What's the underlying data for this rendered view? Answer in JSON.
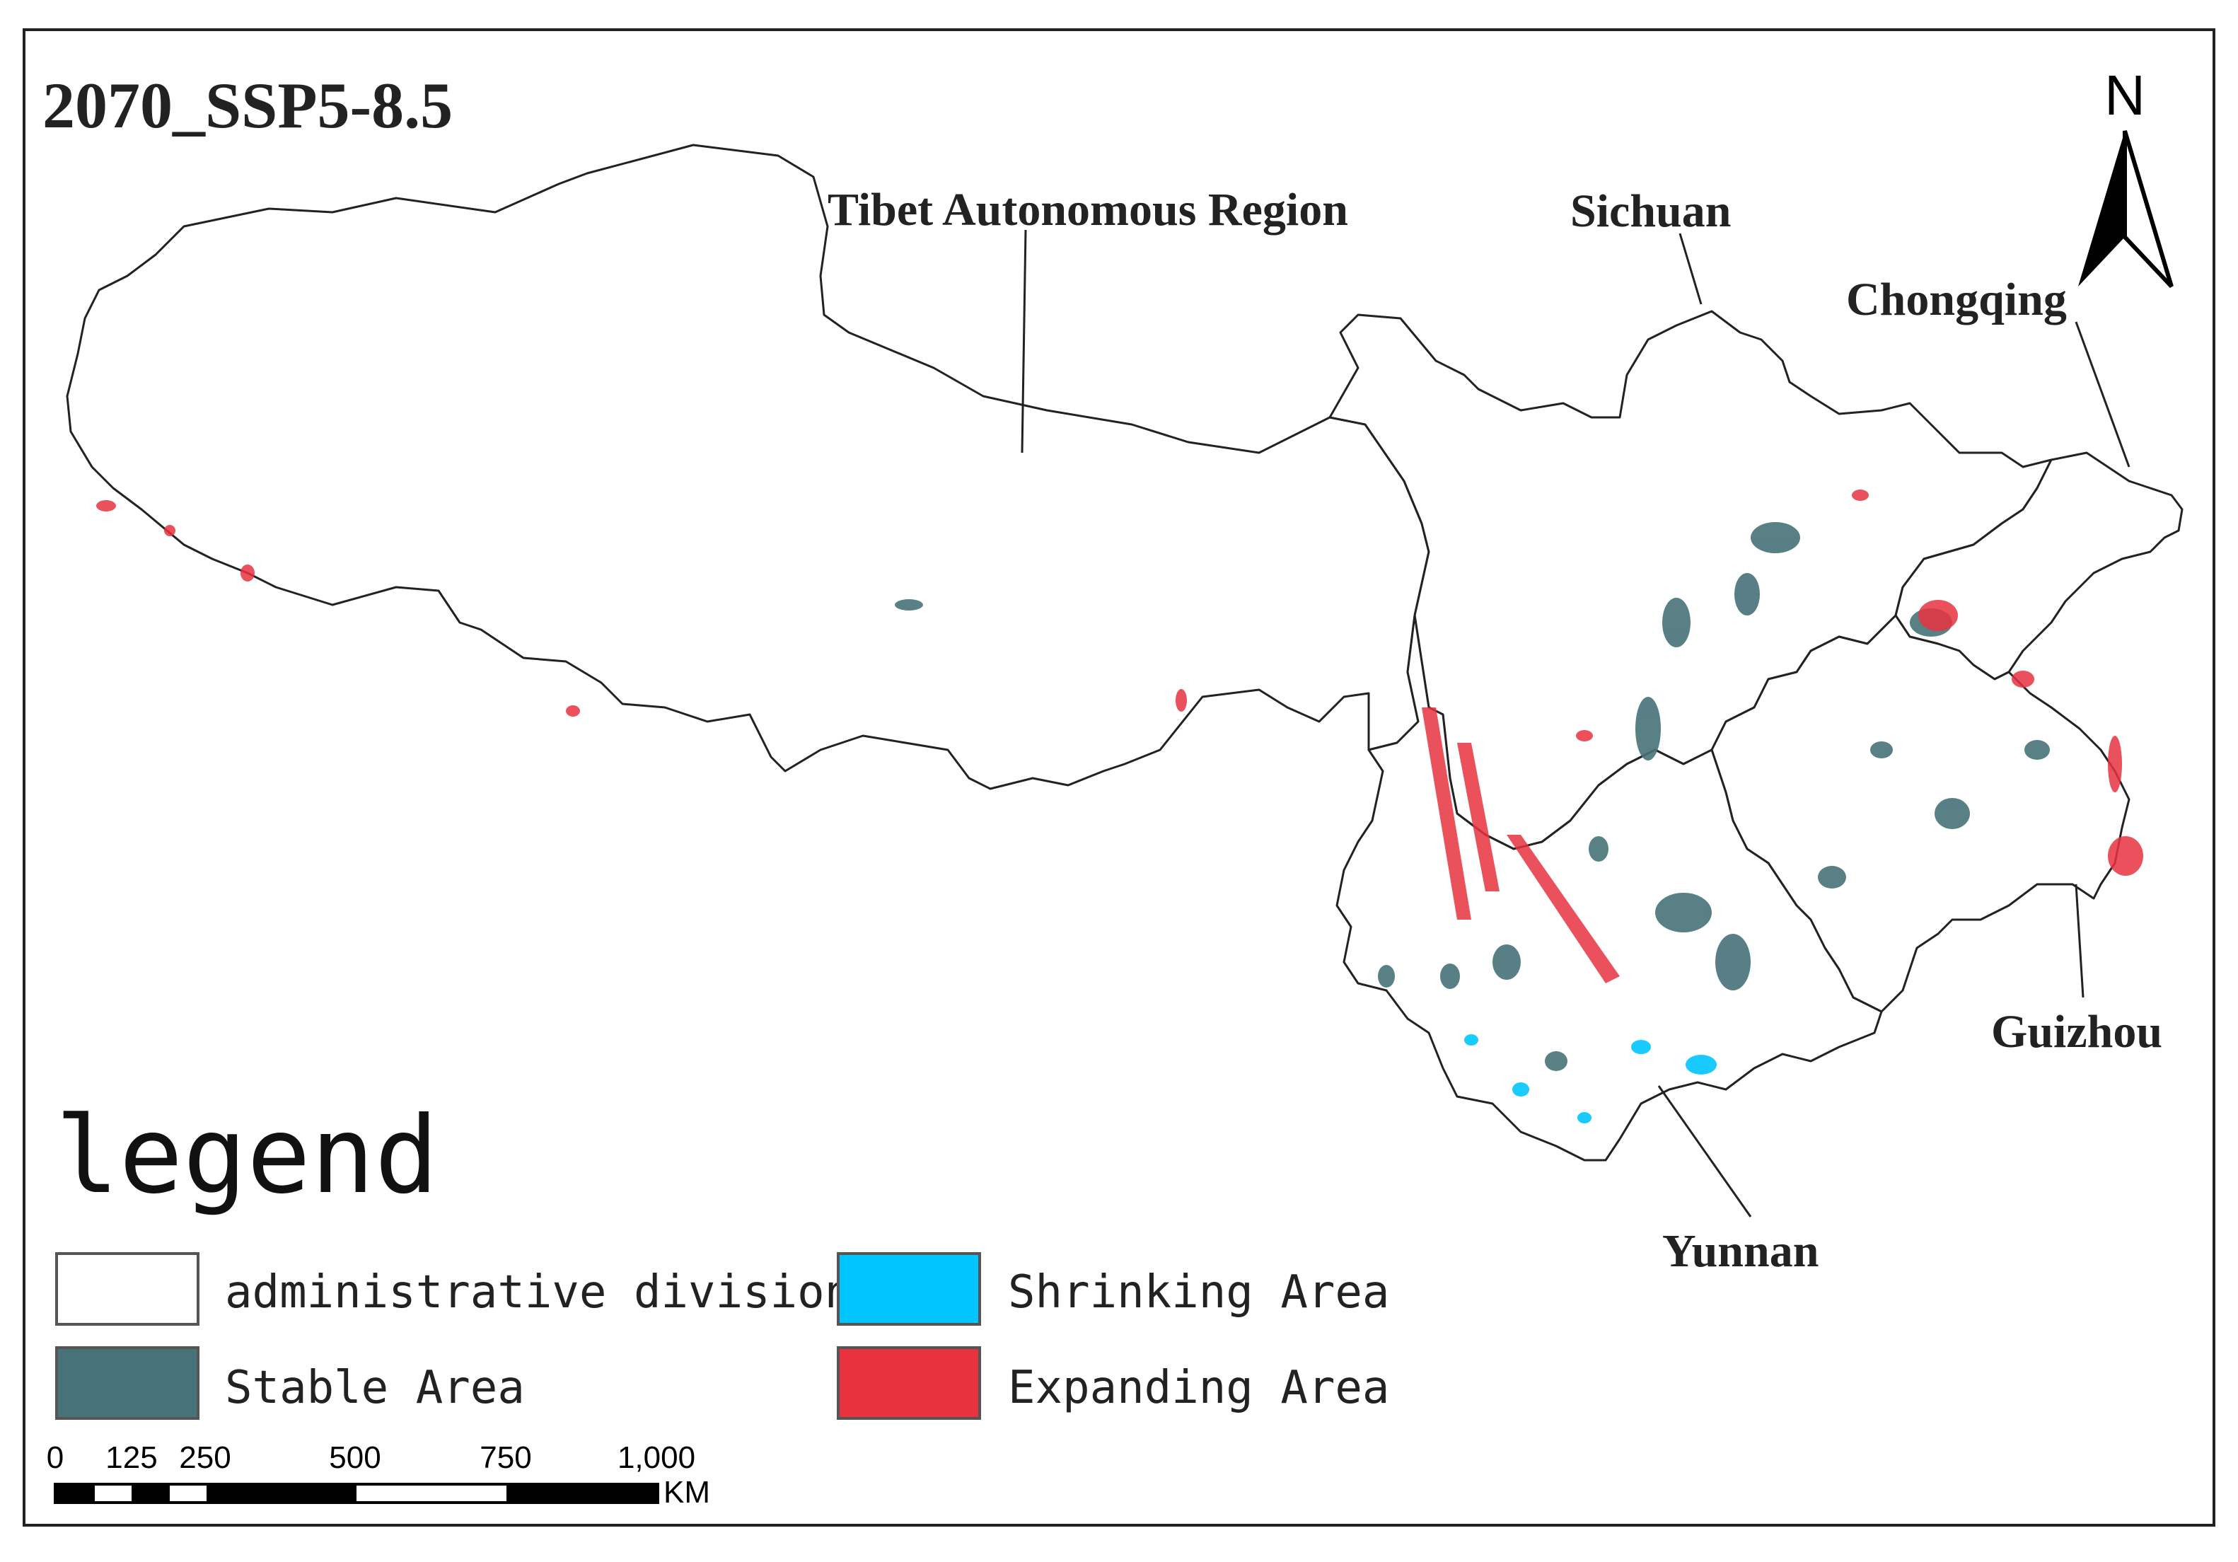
{
  "map": {
    "title": "2070_SSP5-8.5",
    "regions": {
      "tibet": "Tibet Autonomous Region",
      "sichuan": "Sichuan",
      "chongqing": "Chongqing",
      "guizhou": "Guizhou",
      "yunnan": "Yunnan"
    },
    "north_arrow": {
      "label": "N"
    }
  },
  "legend": {
    "title": "legend",
    "items": [
      {
        "label": "administrative division",
        "color": "#ffffff"
      },
      {
        "label": "Shrinking Area",
        "color": "#00c5ff"
      },
      {
        "label": "Stable Area",
        "color": "#467278"
      },
      {
        "label": "Expanding Area",
        "color": "#e8333f"
      }
    ]
  },
  "scale_bar": {
    "ticks": [
      "0",
      "125",
      "250",
      "500",
      "750",
      "1,000"
    ],
    "unit": "KM"
  },
  "colors": {
    "boundary": "#222222",
    "stable": "#467278",
    "expanding": "#e8333f",
    "shrinking": "#00c5ff"
  }
}
